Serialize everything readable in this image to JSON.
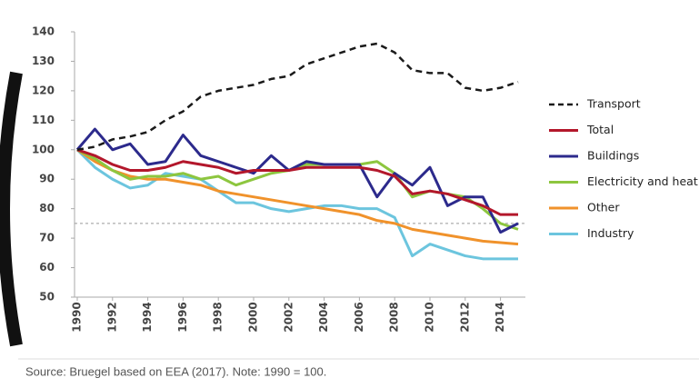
{
  "chart_data": {
    "type": "line",
    "x": [
      1990,
      1991,
      1992,
      1993,
      1994,
      1995,
      1996,
      1997,
      1998,
      1999,
      2000,
      2001,
      2002,
      2003,
      2004,
      2005,
      2006,
      2007,
      2008,
      2009,
      2010,
      2011,
      2012,
      2013,
      2014,
      2015
    ],
    "xlim": [
      1990,
      2015
    ],
    "xticks": [
      1990,
      1992,
      1994,
      1996,
      1998,
      2000,
      2002,
      2004,
      2006,
      2008,
      2010,
      2012,
      2014
    ],
    "ylim": [
      50,
      140
    ],
    "yticks": [
      50,
      60,
      70,
      80,
      90,
      100,
      110,
      120,
      130,
      140
    ],
    "reference_line": 75,
    "legend": "right",
    "source": "Source: Bruegel based on EEA (2017). Note: 1990 = 100.",
    "series": [
      {
        "name": "Transport",
        "color": "#1a1a1a",
        "dash": true,
        "values": [
          100,
          101,
          103.5,
          104.5,
          106,
          110,
          113,
          118,
          120,
          121,
          122,
          124,
          125,
          129,
          131,
          133,
          135,
          136,
          133,
          127,
          126,
          126,
          121,
          120,
          121,
          123
        ]
      },
      {
        "name": "Total",
        "color": "#b3172b",
        "values": [
          100,
          98,
          95,
          93,
          93,
          94,
          96,
          95,
          94,
          92,
          93,
          93,
          93,
          94,
          94,
          94,
          94,
          93,
          91,
          85,
          86,
          85,
          83,
          81,
          78,
          78
        ]
      },
      {
        "name": "Buildings",
        "color": "#2c2a8c",
        "values": [
          100,
          107,
          100,
          102,
          95,
          96,
          105,
          98,
          96,
          94,
          92,
          98,
          93,
          96,
          95,
          95,
          95,
          84,
          92,
          88,
          94,
          81,
          84,
          84,
          72,
          75
        ]
      },
      {
        "name": "Electricity and heat",
        "color": "#8dc63f",
        "values": [
          100,
          97,
          93,
          90,
          91,
          91,
          92,
          90,
          91,
          88,
          90,
          92,
          93,
          95,
          95,
          95,
          95,
          96,
          92,
          84,
          86,
          85,
          84,
          80,
          75,
          73
        ]
      },
      {
        "name": "Other",
        "color": "#f0922b",
        "values": [
          100,
          96,
          93,
          91,
          90,
          90,
          89,
          88,
          86,
          85,
          84,
          83,
          82,
          81,
          80,
          79,
          78,
          76,
          75,
          73,
          72,
          71,
          70,
          69,
          68.5,
          68
        ]
      },
      {
        "name": "Industry",
        "color": "#6cc5de",
        "values": [
          100,
          94,
          90,
          87,
          88,
          92,
          91,
          90,
          86,
          82,
          82,
          80,
          79,
          80,
          81,
          81,
          80,
          80,
          77,
          64,
          68,
          66,
          64,
          63,
          63,
          63
        ]
      }
    ]
  }
}
